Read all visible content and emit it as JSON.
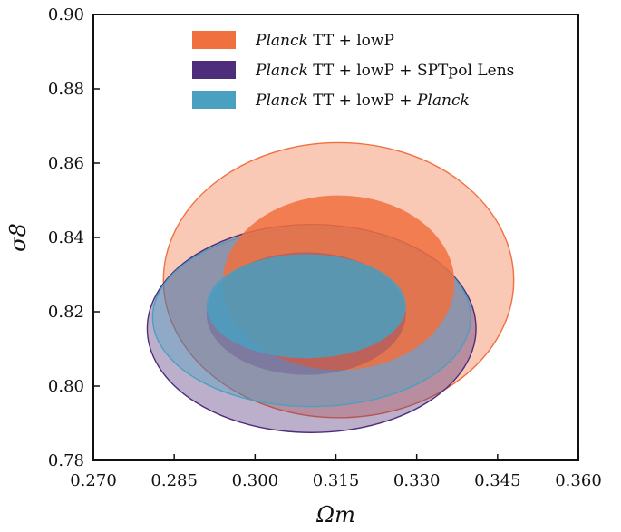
{
  "chart_data": {
    "type": "contour",
    "xlabel": "Ωm",
    "ylabel": "σ8",
    "xlim": [
      0.27,
      0.36
    ],
    "ylim": [
      0.78,
      0.9
    ],
    "xticks": [
      "0.270",
      "0.285",
      "0.300",
      "0.315",
      "0.330",
      "0.345",
      "0.360"
    ],
    "yticks": [
      "0.78",
      "0.80",
      "0.82",
      "0.84",
      "0.86",
      "0.88",
      "0.90"
    ],
    "legend_position": "top-center",
    "series": [
      {
        "name_italic": "Planck",
        "name_rest": " TT + lowP",
        "color": "#f07040",
        "contour_68": {
          "center": [
            0.3155,
            0.8278
          ],
          "rx": 0.0215,
          "ry": 0.0235
        },
        "contour_95": {
          "center": [
            0.3155,
            0.8285
          ],
          "rx": 0.0325,
          "ry": 0.037
        }
      },
      {
        "name_italic": "Planck",
        "name_rest": " TT + lowP + SPTpol Lens",
        "color": "#4e2d7a",
        "contour_68": {
          "center": [
            0.3095,
            0.8195
          ],
          "rx": 0.0185,
          "ry": 0.0165
        },
        "contour_95": {
          "center": [
            0.3105,
            0.8155
          ],
          "rx": 0.0305,
          "ry": 0.028
        }
      },
      {
        "name_italic": "Planck",
        "name_rest": " TT + lowP + ",
        "name_italic2": "Planck",
        "color": "#4aa0c0",
        "contour_68": {
          "center": [
            0.3095,
            0.8215
          ],
          "rx": 0.0185,
          "ry": 0.014
        },
        "contour_95": {
          "center": [
            0.3105,
            0.8185
          ],
          "rx": 0.0295,
          "ry": 0.024
        }
      }
    ]
  }
}
